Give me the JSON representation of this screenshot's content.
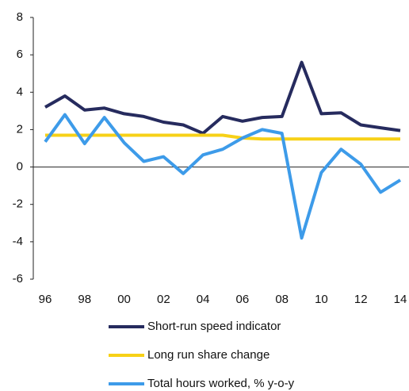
{
  "chart_data": {
    "type": "line",
    "categories": [
      "96",
      null,
      "98",
      null,
      "00",
      null,
      "02",
      null,
      "04",
      null,
      "06",
      null,
      "08",
      null,
      "10",
      null,
      "12",
      null,
      "14"
    ],
    "series": [
      {
        "name": "Short-run speed indicator",
        "color": "#262b5e",
        "values": [
          3.2,
          3.8,
          3.05,
          3.15,
          2.85,
          2.7,
          2.4,
          2.25,
          1.8,
          2.7,
          2.45,
          2.65,
          2.7,
          5.6,
          2.85,
          2.9,
          2.25,
          2.1,
          1.95
        ]
      },
      {
        "name": "Long run share change",
        "color": "#f7d117",
        "values": [
          1.7,
          1.7,
          1.7,
          1.7,
          1.7,
          1.7,
          1.7,
          1.7,
          1.7,
          1.7,
          1.55,
          1.5,
          1.5,
          1.5,
          1.5,
          1.5,
          1.5,
          1.5,
          1.5
        ]
      },
      {
        "name": "Total hours worked, % y-o-y",
        "color": "#3d9be9",
        "values": [
          1.35,
          2.8,
          1.25,
          2.65,
          1.3,
          0.3,
          0.55,
          -0.35,
          0.65,
          0.95,
          1.55,
          2.0,
          1.8,
          -3.8,
          -0.3,
          0.95,
          0.15,
          -1.35,
          -0.7
        ]
      }
    ],
    "ylim": [
      -6,
      8
    ],
    "yticks": [
      -6,
      -4,
      -2,
      0,
      2,
      4,
      6,
      8
    ]
  }
}
